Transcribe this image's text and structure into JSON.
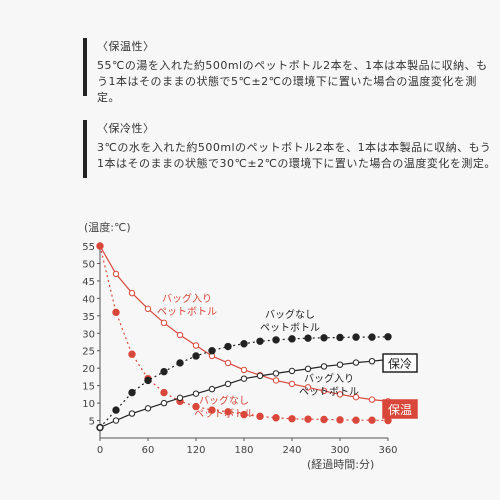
{
  "sections": [
    {
      "title": "〈保温性〉",
      "text": "55℃の湯を入れた約500mlのペットボトル2本を、1本は本製品に収納、もう1本はそのままの状態で5℃±2℃の環境下に置いた場合の温度変化を測定。"
    },
    {
      "title": "〈保冷性〉",
      "text": "3℃の水を入れた約500mlのペットボトル2本を、1本は本製品に収納、もう1本はそのままの状態で30℃±2℃の環境下に置いた場合の温度変化を測定。"
    }
  ],
  "chart_data": {
    "type": "line",
    "title": "",
    "xlabel": "(経過時間:分)",
    "ylabel": "(温度:℃)",
    "xlim": [
      0,
      360
    ],
    "ylim": [
      0,
      55
    ],
    "xticks": [
      0,
      60,
      120,
      180,
      240,
      300,
      360
    ],
    "yticks": [
      5,
      10,
      15,
      20,
      25,
      30,
      35,
      40,
      45,
      50,
      55
    ],
    "grid": false,
    "series": [
      {
        "name": "バッグ入り\nペットボトル",
        "group": "保温",
        "color": "#d9473b",
        "style": "solid",
        "marker": "open",
        "x": [
          0,
          20,
          40,
          60,
          80,
          100,
          120,
          140,
          160,
          180,
          200,
          220,
          240,
          260,
          280,
          300,
          320,
          340,
          360
        ],
        "y": [
          55,
          47,
          41.5,
          37,
          33,
          29.5,
          26.5,
          23.5,
          21.5,
          19.5,
          18,
          16.5,
          15.5,
          14.5,
          13.5,
          12.5,
          11.7,
          11,
          10.5
        ]
      },
      {
        "name": "バッグなし\nペットボトル",
        "group": "保温",
        "color": "#d9473b",
        "style": "dotted",
        "marker": "filled",
        "x": [
          0,
          20,
          40,
          60,
          80,
          100,
          120,
          140,
          160,
          180,
          200,
          220,
          240,
          260,
          280,
          300,
          320,
          340,
          360
        ],
        "y": [
          55,
          36,
          24,
          17,
          13,
          10.5,
          9,
          8,
          7.5,
          6.7,
          6.2,
          5.8,
          5.5,
          5.4,
          5.3,
          5.2,
          5.1,
          5.1,
          5
        ]
      },
      {
        "name": "バッグなし\nペットボトル",
        "group": "保冷",
        "color": "#222222",
        "style": "dotted",
        "marker": "filled",
        "x": [
          0,
          20,
          40,
          60,
          80,
          100,
          120,
          140,
          160,
          180,
          200,
          220,
          240,
          260,
          280,
          300,
          320,
          340,
          360
        ],
        "y": [
          3,
          8,
          13,
          16.5,
          19,
          21.5,
          23.5,
          25,
          26.2,
          27,
          27.7,
          28.1,
          28.4,
          28.6,
          28.7,
          28.8,
          28.9,
          28.9,
          29
        ]
      },
      {
        "name": "バッグ入り\nペットボトル",
        "group": "保冷",
        "color": "#222222",
        "style": "solid",
        "marker": "open",
        "x": [
          0,
          20,
          40,
          60,
          80,
          100,
          120,
          140,
          160,
          180,
          200,
          220,
          240,
          260,
          280,
          300,
          320,
          340,
          360
        ],
        "y": [
          3,
          5,
          7,
          8.5,
          10,
          11.5,
          12.7,
          14,
          15.5,
          17,
          17.8,
          18.5,
          19.2,
          19.8,
          20.5,
          21,
          21.6,
          22,
          22.5
        ]
      }
    ],
    "annotations": [
      "バッグ入り\nペットボトル",
      "バッグなし\nペットボトル",
      "バッグ入り\nペットボトル",
      "バッグなし\nペットボトル"
    ],
    "legend": [
      {
        "label": "保冷",
        "color": "#222222",
        "style": "outlined"
      },
      {
        "label": "保温",
        "color": "#d9473b",
        "style": "filled"
      }
    ]
  }
}
